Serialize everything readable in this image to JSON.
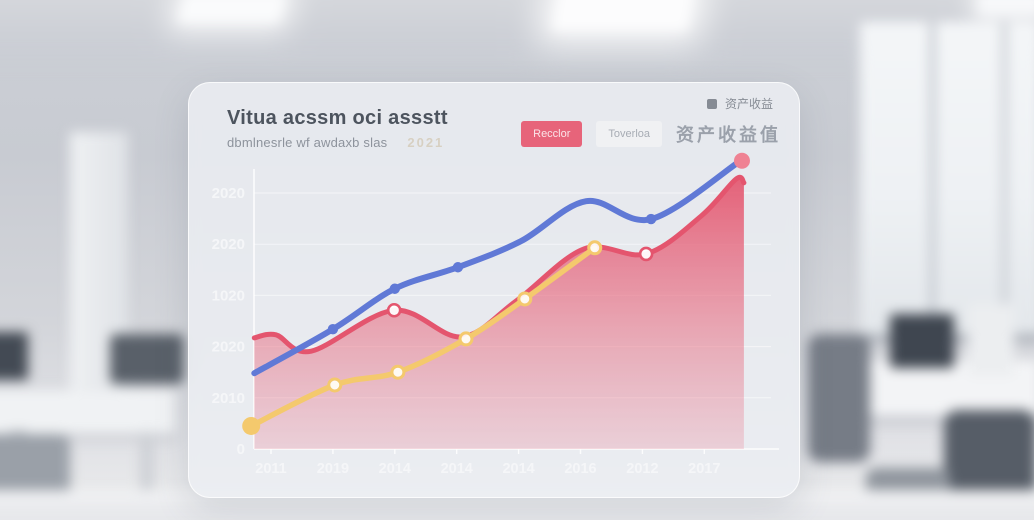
{
  "card": {
    "title": "Vitua acssm oci assstt",
    "subtitle": "dbmlnesrle wf awdaxb slas",
    "subtitle_note": "2021",
    "buttons": [
      {
        "label": "Recclor"
      },
      {
        "label": "Toverloa"
      }
    ],
    "legend_small_label": "资产收益",
    "metric_label": "资产收益值"
  },
  "colors": {
    "accent_red": "#e4556e",
    "accent_blue": "#6079d6",
    "accent_yellow": "#f4c96d",
    "end_dot_pink": "#ef8293",
    "button_red": "#e7647a",
    "axis_text": "#f5f6f8",
    "grid_line": "rgba(255,255,255,0.55)"
  },
  "chart_data": {
    "type": "area",
    "title": "Vitua acssm oci assstt",
    "categories": [
      "2011",
      "2019",
      "2014",
      "2014",
      "2014",
      "2016",
      "2012",
      "2017"
    ],
    "y_ticks": [
      {
        "v": 0,
        "label": "0"
      },
      {
        "v": 1,
        "label": "2010"
      },
      {
        "v": 2,
        "label": "2020"
      },
      {
        "v": 3,
        "label": "1020"
      },
      {
        "v": 4,
        "label": "2020"
      },
      {
        "v": 5,
        "label": "2020"
      }
    ],
    "ylim": [
      0,
      5.8
    ],
    "grid": true,
    "legend_position": "top-right",
    "series": [
      {
        "name": "red-area",
        "type": "area",
        "color": "#e4556e",
        "points": [
          [
            -0.27,
            2.17
          ],
          [
            0.08,
            2.23
          ],
          [
            0.65,
            1.91
          ],
          [
            1.99,
            2.71
          ],
          [
            3.07,
            2.19
          ],
          [
            3.96,
            2.89
          ],
          [
            5.06,
            3.91
          ],
          [
            6.06,
            3.81
          ],
          [
            6.95,
            4.55
          ],
          [
            7.51,
            5.27
          ],
          [
            7.64,
            5.2
          ]
        ],
        "ring_marker_indices": [
          3,
          7
        ],
        "stroke_width": 5
      },
      {
        "name": "yellow-line",
        "type": "line",
        "color": "#f4c96d",
        "points": [
          [
            -0.32,
            0.45
          ],
          [
            1.03,
            1.25
          ],
          [
            2.05,
            1.5
          ],
          [
            3.15,
            2.15
          ],
          [
            4.1,
            2.93
          ],
          [
            5.23,
            3.93
          ]
        ],
        "solid_marker_indices": [
          0
        ],
        "big_marker_indices": [
          0
        ],
        "ring_marker_indices": [
          1,
          2,
          3,
          4,
          5
        ],
        "stroke_width": 5.5
      },
      {
        "name": "blue-line",
        "type": "line",
        "color": "#6079d6",
        "points": [
          [
            -0.27,
            1.48
          ],
          [
            1.0,
            2.34
          ],
          [
            2.0,
            3.13
          ],
          [
            3.02,
            3.55
          ],
          [
            4.04,
            4.06
          ],
          [
            5.09,
            4.84
          ],
          [
            6.14,
            4.49
          ],
          [
            7.56,
            5.61
          ]
        ],
        "solid_marker_indices": [
          1,
          2,
          3,
          6
        ],
        "end_dot_color": "#ef8293",
        "stroke_width": 6
      }
    ]
  }
}
